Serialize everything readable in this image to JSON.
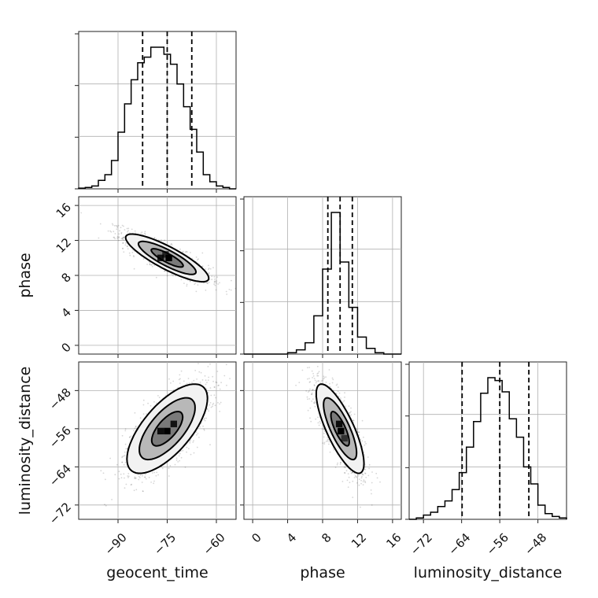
{
  "chart_data": {
    "type": "corner",
    "grid": true,
    "parameters": [
      {
        "key": "geocent_time",
        "label": "geocent_time",
        "range": [
          -102,
          -54
        ],
        "ticks": [
          -90,
          -75,
          -60
        ],
        "tick_labels": [
          "−90",
          "−75",
          "−60"
        ],
        "quantiles": [
          -82.5,
          -75,
          -67.5
        ],
        "histogram": {
          "edges": [
            -102,
            -100,
            -98,
            -96,
            -94,
            -92,
            -90,
            -88,
            -86,
            -84,
            -82,
            -80,
            -78,
            -76,
            -74,
            -72,
            -70,
            -68,
            -66,
            -64,
            -62,
            -60,
            -58,
            -56,
            -54
          ],
          "counts": [
            0.005,
            0.01,
            0.02,
            0.06,
            0.1,
            0.2,
            0.4,
            0.6,
            0.77,
            0.89,
            0.93,
            1.0,
            1.0,
            0.95,
            0.88,
            0.74,
            0.58,
            0.42,
            0.26,
            0.1,
            0.05,
            0.02,
            0.01,
            0
          ]
        }
      },
      {
        "key": "phase",
        "label": "phase",
        "range": [
          -1,
          17
        ],
        "ticks": [
          0,
          4,
          8,
          12,
          16
        ],
        "tick_labels": [
          "0",
          "4",
          "8",
          "12",
          "16"
        ],
        "quantiles": [
          8.6,
          10,
          11.4
        ],
        "histogram": {
          "edges": [
            -1,
            0,
            1,
            2,
            3,
            4,
            5,
            6,
            7,
            8,
            9,
            10,
            11,
            12,
            13,
            14,
            15,
            16,
            17
          ],
          "counts": [
            0,
            0,
            0,
            0,
            0,
            0.01,
            0.03,
            0.08,
            0.27,
            0.6,
            1.0,
            0.65,
            0.33,
            0.12,
            0.04,
            0.01,
            0,
            0
          ]
        }
      },
      {
        "key": "luminosity_distance",
        "label": "luminosity_distance",
        "range": [
          -75,
          -42
        ],
        "ticks": [
          -72,
          -64,
          -56,
          -48
        ],
        "tick_labels": [
          "−72",
          "−64",
          "−56",
          "−48"
        ],
        "quantiles": [
          -63.9,
          -56,
          -49.9
        ],
        "histogram": {
          "edges": [
            -75,
            -73.5,
            -72,
            -70.5,
            -69,
            -67.5,
            -66,
            -64.5,
            -63,
            -61.5,
            -60,
            -58.5,
            -57,
            -55.5,
            -54,
            -52.5,
            -51,
            -49.5,
            -48,
            -46.5,
            -45,
            -43.5,
            -42
          ],
          "counts": [
            0,
            0.01,
            0.03,
            0.05,
            0.09,
            0.13,
            0.21,
            0.33,
            0.51,
            0.69,
            0.89,
            1.0,
            0.98,
            0.9,
            0.71,
            0.58,
            0.37,
            0.25,
            0.1,
            0.04,
            0.02,
            0.01
          ]
        }
      }
    ],
    "pairs": [
      {
        "x": "geocent_time",
        "y": "phase",
        "mean": [
          -75,
          10
        ],
        "sd": [
          6.5,
          1.4
        ],
        "rho": -0.85,
        "peak_cells": [
          [
            -77,
            10,
            0.85
          ],
          [
            -74.5,
            10,
            1.0
          ],
          [
            -75.5,
            10.4,
            0.7
          ]
        ]
      },
      {
        "x": "geocent_time",
        "y": "luminosity_distance",
        "mean": [
          -75,
          -56
        ],
        "sd": [
          6.3,
          4.8
        ],
        "rho": 0.68,
        "peak_cells": [
          [
            -77,
            -56.5,
            0.9
          ],
          [
            -75,
            -56.5,
            1.0
          ],
          [
            -73,
            -55,
            0.85
          ]
        ]
      },
      {
        "x": "phase",
        "y": "luminosity_distance",
        "mean": [
          10,
          -56
        ],
        "sd": [
          1.4,
          4.8
        ],
        "rho": -0.78,
        "peak_cells": [
          [
            9.9,
            -55,
            0.9
          ],
          [
            10.1,
            -56.5,
            1.0
          ],
          [
            10.5,
            -58,
            0.6
          ]
        ]
      }
    ]
  }
}
